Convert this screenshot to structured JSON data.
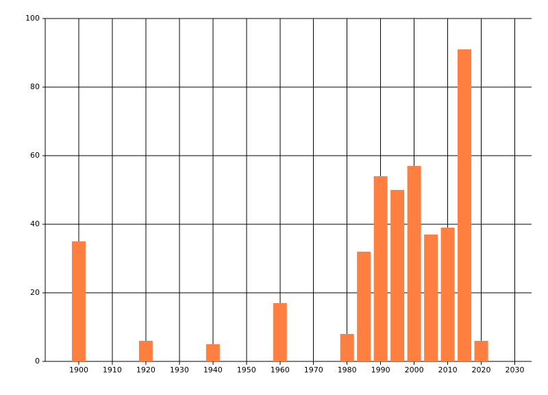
{
  "chart_data": {
    "type": "bar",
    "x": [
      1900,
      1920,
      1940,
      1960,
      1980,
      1985,
      1990,
      1995,
      2000,
      2005,
      2010,
      2015,
      2020
    ],
    "values": [
      35,
      6,
      5,
      17,
      8,
      32,
      54,
      50,
      57,
      37,
      39,
      91,
      6
    ],
    "color": "#ff7f40",
    "xlim": [
      1890,
      2035
    ],
    "xticks": [
      1900,
      1910,
      1920,
      1930,
      1940,
      1950,
      1960,
      1970,
      1980,
      1990,
      2000,
      2010,
      2020,
      2030
    ],
    "ylim": [
      0,
      100
    ],
    "yticks": [
      0,
      20,
      40,
      60,
      80,
      100
    ],
    "grid": true
  }
}
